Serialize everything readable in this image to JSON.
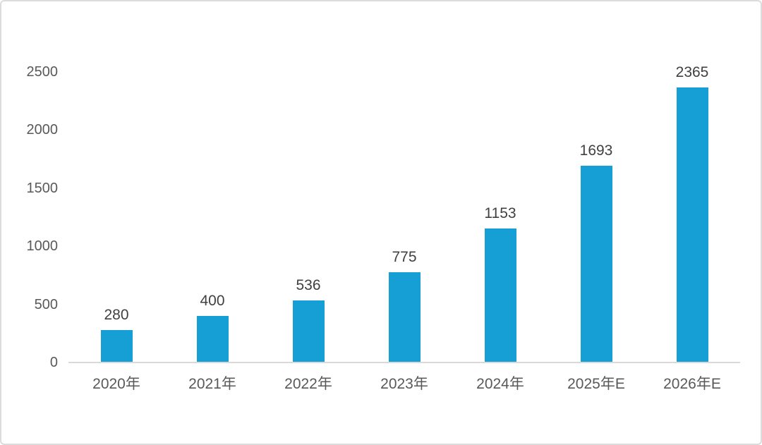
{
  "chart_data": {
    "type": "bar",
    "categories": [
      "2020年",
      "2021年",
      "2022年",
      "2023年",
      "2024年",
      "2025年E",
      "2026年E"
    ],
    "values": [
      280,
      400,
      536,
      775,
      1153,
      1693,
      2365
    ],
    "title": "",
    "xlabel": "",
    "ylabel": "",
    "ylim": [
      0,
      2500
    ],
    "yticks": [
      0,
      500,
      1000,
      1500,
      2000,
      2500
    ],
    "grid": false,
    "legend": null,
    "bar_color": "#159FD4",
    "axis_line_color": "#D9D9D9",
    "tick_label_color": "#595959",
    "value_label_color": "#404040",
    "card_border_color": "#DCDCDC"
  }
}
